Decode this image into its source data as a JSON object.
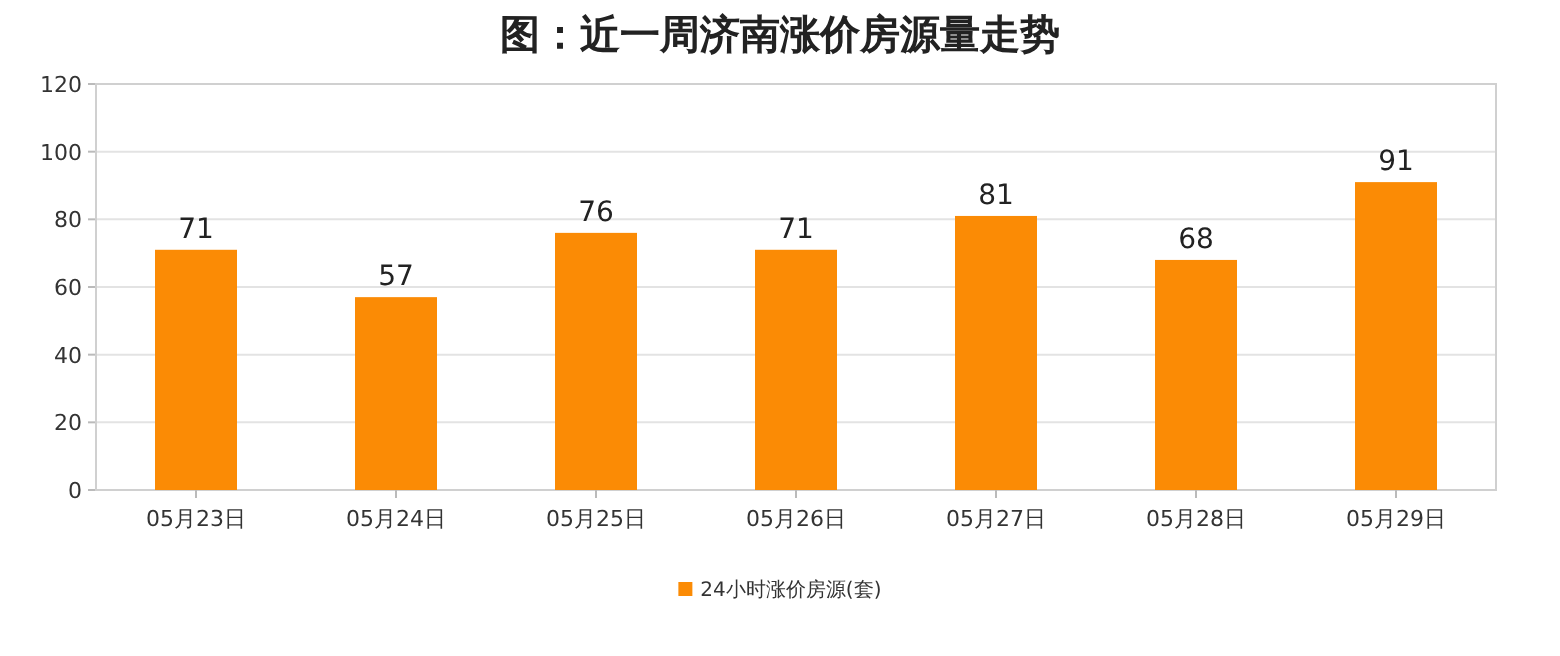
{
  "chart_data": {
    "type": "bar",
    "title": "图：近一周济南涨价房源量走势",
    "categories": [
      "05月23日",
      "05月24日",
      "05月25日",
      "05月26日",
      "05月27日",
      "05月28日",
      "05月29日"
    ],
    "series": [
      {
        "name": "24小时涨价房源(套)",
        "color": "#fb8b05",
        "values": [
          71,
          57,
          76,
          71,
          81,
          68,
          91
        ]
      }
    ],
    "ylim": [
      0,
      120
    ],
    "yticks": [
      0,
      20,
      40,
      60,
      80,
      100,
      120
    ],
    "grid": "y",
    "legend": "bottom",
    "data_labels": true
  }
}
